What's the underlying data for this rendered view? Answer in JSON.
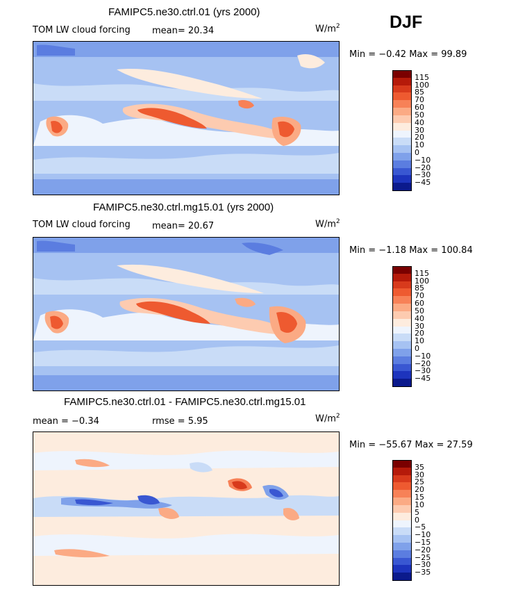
{
  "season": "DJF",
  "unit_base": "W/m",
  "unit_exp": "2",
  "panels": [
    {
      "title": "FAMIPC5.ne30.ctrl.01 (yrs 2000)",
      "left_label": "TOM LW cloud forcing",
      "stat1": "mean=  20.34",
      "stat2": "",
      "minmax": "Min =  −0.42 Max =  99.89",
      "colorbar": {
        "labels": [
          "115",
          "100",
          "85",
          "70",
          "60",
          "50",
          "40",
          "30",
          "20",
          "10",
          "0",
          "−10",
          "−20",
          "−30",
          "−45"
        ],
        "colors": [
          "#7a0000",
          "#b51a0a",
          "#d83a1c",
          "#ee5a30",
          "#f78157",
          "#fbaa84",
          "#fdcbb0",
          "#fdecde",
          "#eef4fd",
          "#c9dcf7",
          "#a6c2f2",
          "#7fa1ea",
          "#5b7de0",
          "#3957d2",
          "#1d34bd",
          "#0b1a8c"
        ]
      }
    },
    {
      "title": "FAMIPC5.ne30.ctrl.mg15.01 (yrs 2000)",
      "left_label": "TOM LW cloud forcing",
      "stat1": "mean=  20.67",
      "stat2": "",
      "minmax": "Min =  −1.18 Max = 100.84",
      "colorbar": {
        "labels": [
          "115",
          "100",
          "85",
          "70",
          "60",
          "50",
          "40",
          "30",
          "20",
          "10",
          "0",
          "−10",
          "−20",
          "−30",
          "−45"
        ],
        "colors": [
          "#7a0000",
          "#b51a0a",
          "#d83a1c",
          "#ee5a30",
          "#f78157",
          "#fbaa84",
          "#fdcbb0",
          "#fdecde",
          "#eef4fd",
          "#c9dcf7",
          "#a6c2f2",
          "#7fa1ea",
          "#5b7de0",
          "#3957d2",
          "#1d34bd",
          "#0b1a8c"
        ]
      }
    },
    {
      "title": "FAMIPC5.ne30.ctrl.01 - FAMIPC5.ne30.ctrl.mg15.01",
      "left_label": "mean =  −0.34",
      "stat1": "rmse =   5.95",
      "stat2": "",
      "minmax": "Min = −55.67 Max =  27.59",
      "colorbar": {
        "labels": [
          "35",
          "30",
          "25",
          "20",
          "15",
          "10",
          "5",
          "0",
          "−5",
          "−10",
          "−15",
          "−20",
          "−25",
          "−30",
          "−35"
        ],
        "colors": [
          "#7a0000",
          "#b51a0a",
          "#d83a1c",
          "#ee5a30",
          "#f78157",
          "#fbaa84",
          "#fdcbb0",
          "#fdecde",
          "#eef4fd",
          "#c9dcf7",
          "#a6c2f2",
          "#7fa1ea",
          "#5b7de0",
          "#3957d2",
          "#1d34bd",
          "#0b1a8c"
        ]
      }
    }
  ],
  "chart_data": [
    {
      "type": "heatmap",
      "title": "FAMIPC5.ne30.ctrl.01 (yrs 2000)",
      "variable": "TOM LW cloud forcing",
      "units": "W/m2",
      "season": "DJF",
      "mean": 20.34,
      "min": -0.42,
      "max": 99.89,
      "levels": [
        -45,
        -30,
        -20,
        -10,
        0,
        10,
        20,
        30,
        40,
        50,
        60,
        70,
        85,
        100,
        115
      ]
    },
    {
      "type": "heatmap",
      "title": "FAMIPC5.ne30.ctrl.mg15.01 (yrs 2000)",
      "variable": "TOM LW cloud forcing",
      "units": "W/m2",
      "season": "DJF",
      "mean": 20.67,
      "min": -1.18,
      "max": 100.84,
      "levels": [
        -45,
        -30,
        -20,
        -10,
        0,
        10,
        20,
        30,
        40,
        50,
        60,
        70,
        85,
        100,
        115
      ]
    },
    {
      "type": "heatmap",
      "title": "FAMIPC5.ne30.ctrl.01 - FAMIPC5.ne30.ctrl.mg15.01",
      "variable": "difference",
      "units": "W/m2",
      "season": "DJF",
      "mean": -0.34,
      "rmse": 5.95,
      "min": -55.67,
      "max": 27.59,
      "levels": [
        -35,
        -30,
        -25,
        -20,
        -15,
        -10,
        -5,
        0,
        5,
        10,
        15,
        20,
        25,
        30,
        35
      ]
    }
  ]
}
